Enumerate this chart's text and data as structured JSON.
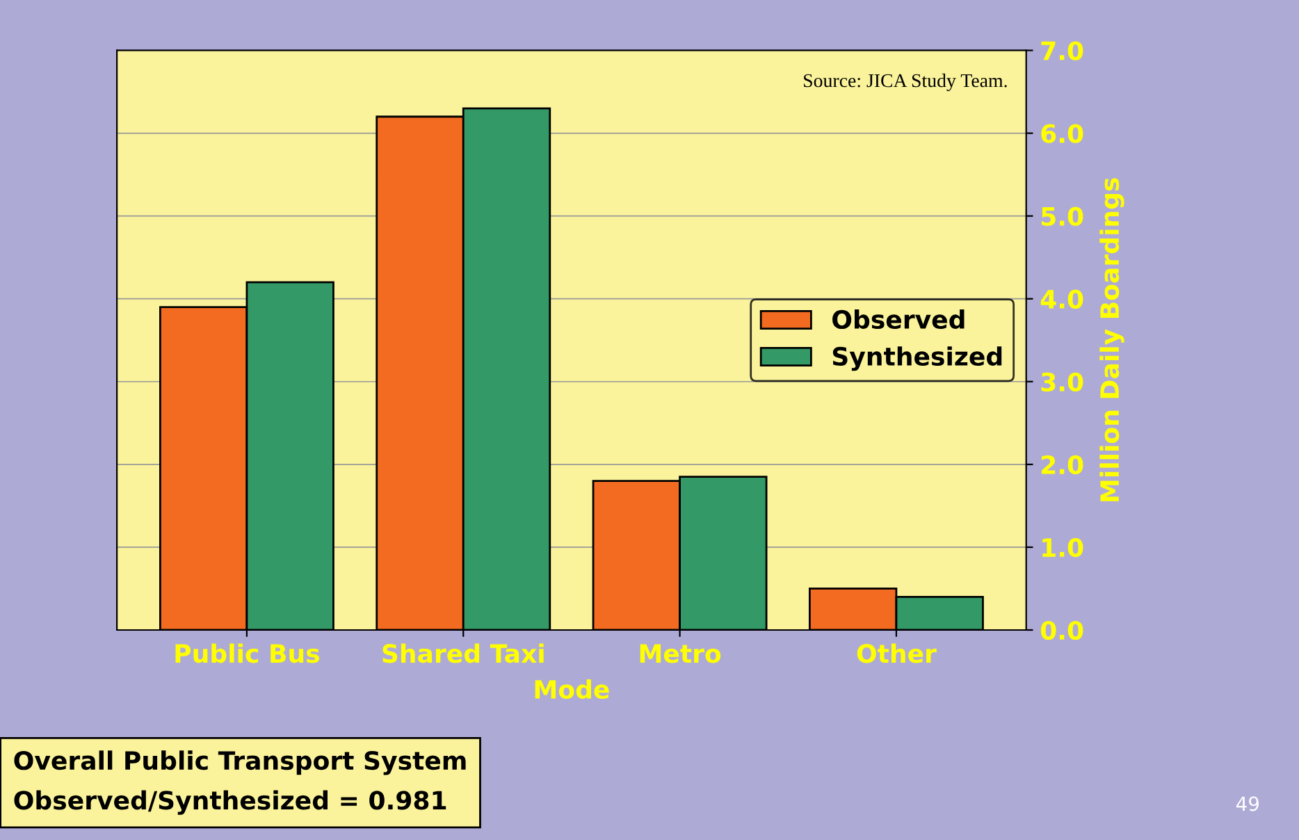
{
  "chart_data": {
    "type": "bar",
    "xlabel": "Mode",
    "ylabel": "Million Daily Boardings",
    "categories": [
      "Public Bus",
      "Shared Taxi",
      "Metro",
      "Other"
    ],
    "series": [
      {
        "name": "Observed",
        "color": "#f26b21",
        "values": [
          3.9,
          6.2,
          1.8,
          0.5
        ]
      },
      {
        "name": "Synthesized",
        "color": "#339966",
        "values": [
          4.2,
          6.3,
          1.85,
          0.4
        ]
      }
    ],
    "ylim": [
      0,
      7
    ],
    "yticks": [
      {
        "value": 0,
        "label": "0.0"
      },
      {
        "value": 1,
        "label": "1.0"
      },
      {
        "value": 2,
        "label": "2.0"
      },
      {
        "value": 3,
        "label": "3.0"
      },
      {
        "value": 4,
        "label": "4.0"
      },
      {
        "value": 5,
        "label": "5.0"
      },
      {
        "value": 6,
        "label": "6.0"
      },
      {
        "value": 7,
        "label": "7.0"
      }
    ],
    "grid": "y",
    "legend": "right",
    "annotations": [
      "Source: JICA Study Team.",
      "Overall Public Transport System\nObserved/Synthesized = 0.981",
      "49"
    ]
  }
}
